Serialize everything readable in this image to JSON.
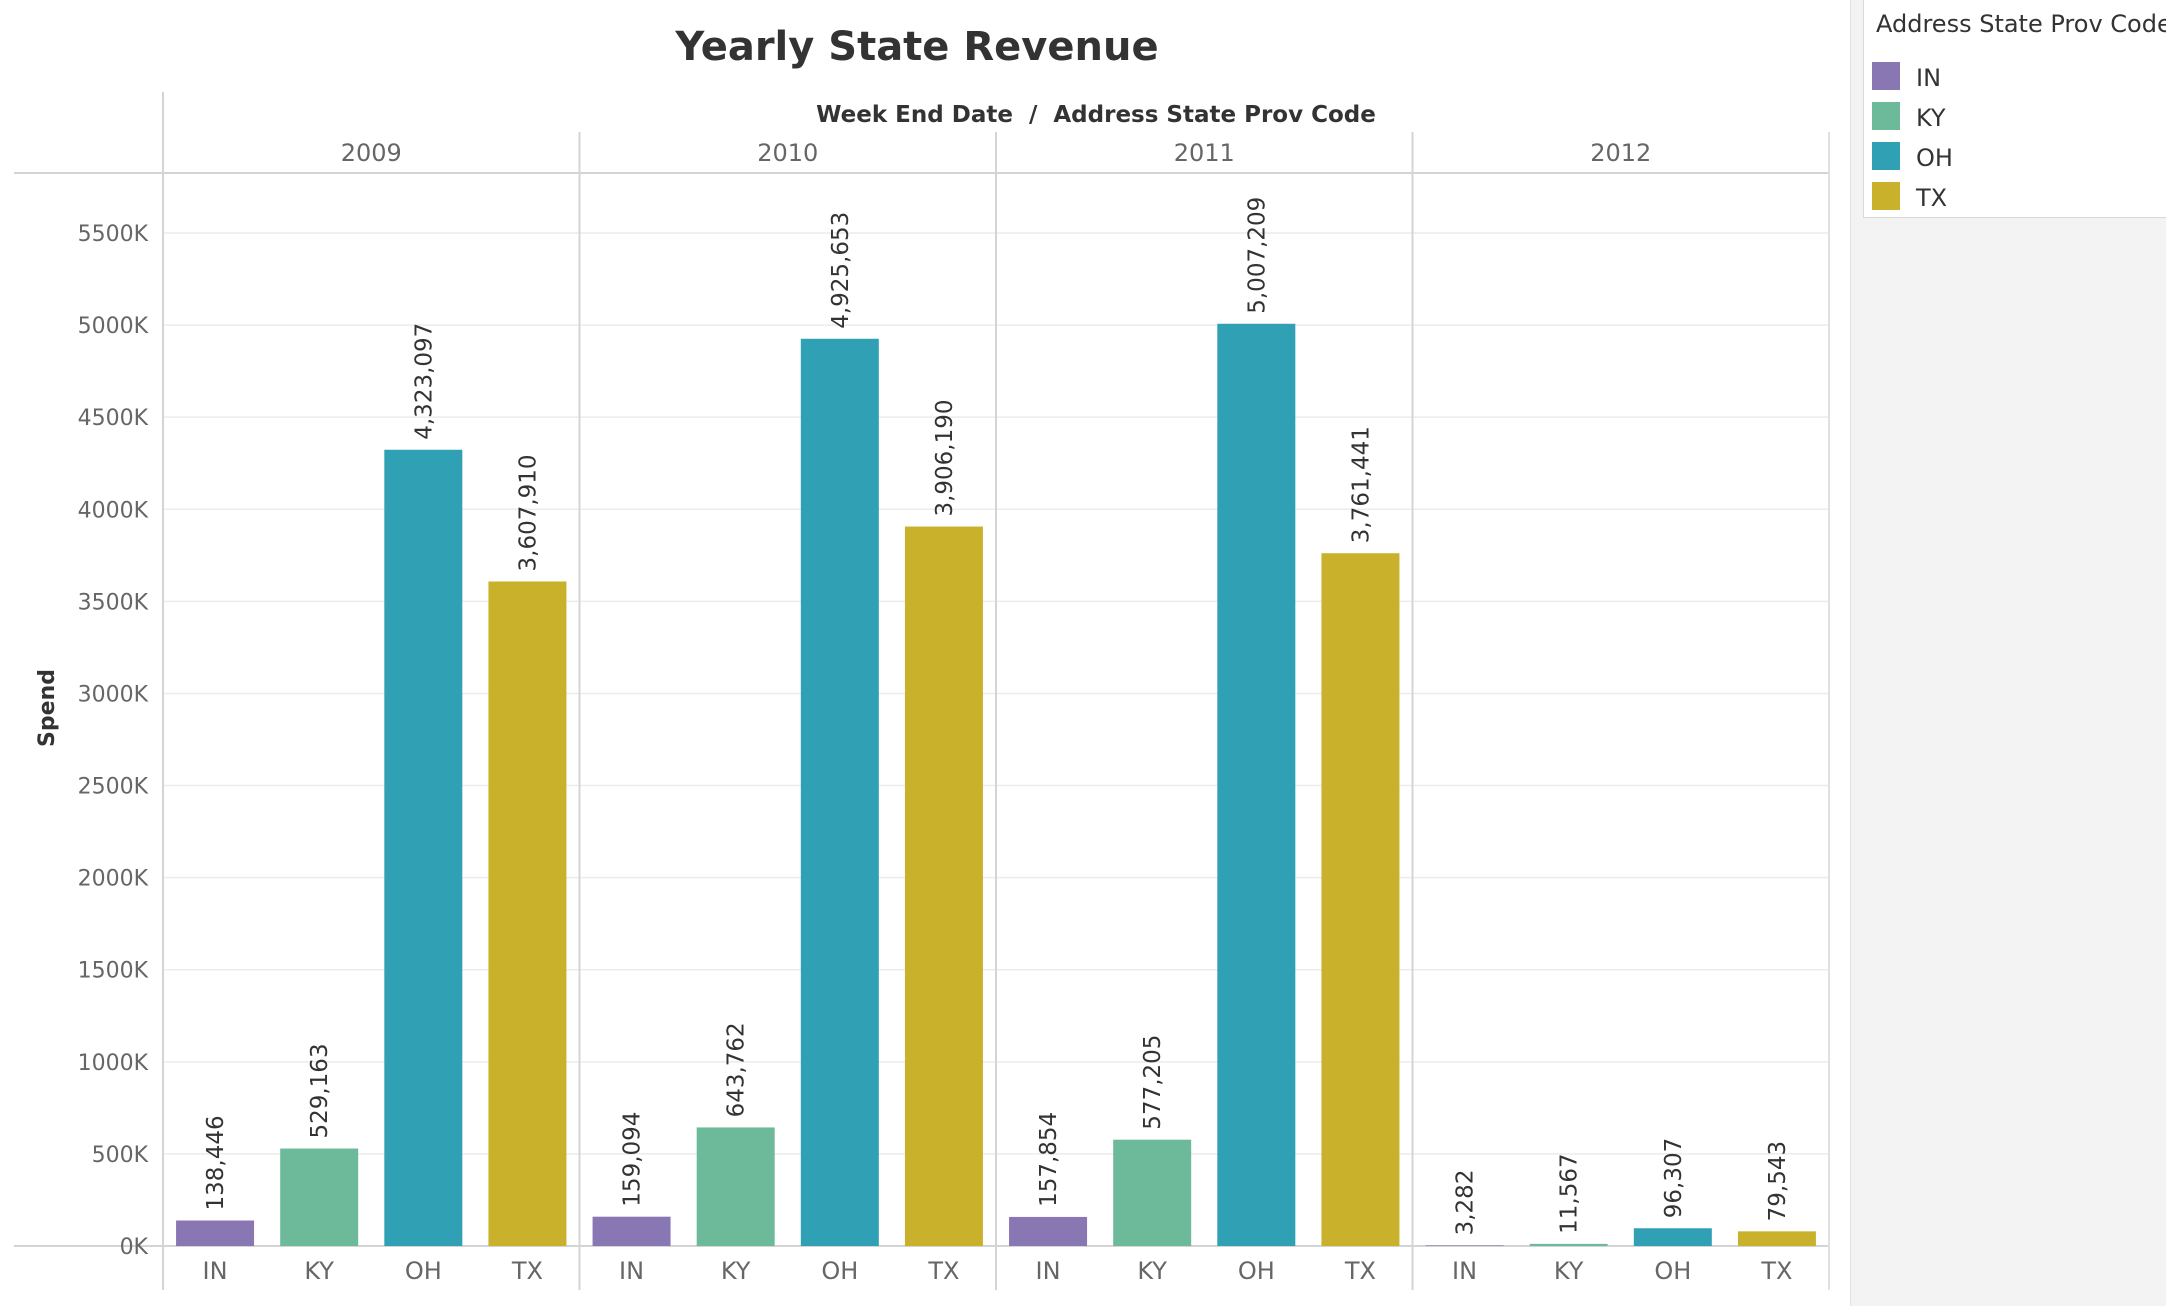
{
  "chart_data": {
    "type": "bar",
    "title": "Yearly State Revenue",
    "column_header": "Week End Date  /  Address State Prov Code",
    "ylabel": "Spend",
    "ylim": [
      0,
      5800000
    ],
    "y_ticks": [
      0,
      500000,
      1000000,
      1500000,
      2000000,
      2500000,
      3000000,
      3500000,
      4000000,
      4500000,
      5000000,
      5500000
    ],
    "y_tick_labels": [
      "0K",
      "500K",
      "1000K",
      "1500K",
      "2000K",
      "2500K",
      "3000K",
      "3500K",
      "4000K",
      "4500K",
      "5000K",
      "5500K"
    ],
    "grid": true,
    "groups": [
      "2009",
      "2010",
      "2011",
      "2012"
    ],
    "categories": [
      "IN",
      "KY",
      "OH",
      "TX"
    ],
    "colors": {
      "IN": "#8877b2",
      "KY": "#6dba9b",
      "OH": "#30a0b4",
      "TX": "#cab12b"
    },
    "values": {
      "2009": [
        138446,
        529163,
        4323097,
        3607910
      ],
      "2010": [
        159094,
        643762,
        4925653,
        3906190
      ],
      "2011": [
        157854,
        577205,
        5007209,
        3761441
      ],
      "2012": [
        3282,
        11567,
        96307,
        79543
      ]
    },
    "value_labels": {
      "2009": [
        "138,446",
        "529,163",
        "4,323,097",
        "3,607,910"
      ],
      "2010": [
        "159,094",
        "643,762",
        "4,925,653",
        "3,906,190"
      ],
      "2011": [
        "157,854",
        "577,205",
        "5,007,209",
        "3,761,441"
      ],
      "2012": [
        "3,282",
        "11,567",
        "96,307",
        "79,543"
      ]
    }
  },
  "legend": {
    "title": "Address State Prov Code",
    "items": [
      {
        "label": "IN",
        "color": "#8877b2"
      },
      {
        "label": "KY",
        "color": "#6dba9b"
      },
      {
        "label": "OH",
        "color": "#30a0b4"
      },
      {
        "label": "TX",
        "color": "#cab12b"
      }
    ]
  }
}
